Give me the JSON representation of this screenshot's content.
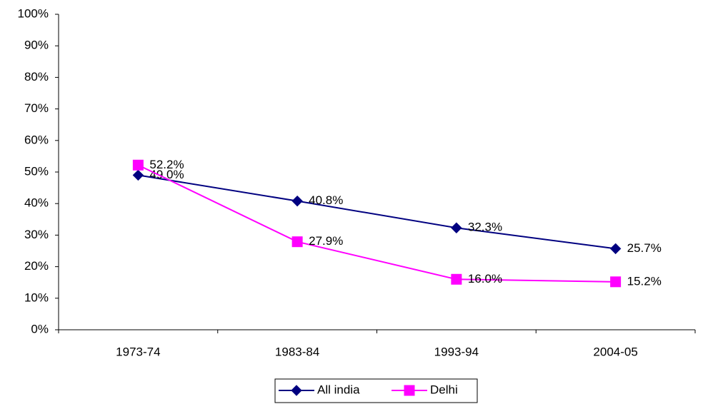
{
  "chart_data": {
    "type": "line",
    "categories": [
      "1973-74",
      "1983-84",
      "1993-94",
      "2004-05"
    ],
    "series": [
      {
        "name": "All india",
        "color": "#000080",
        "marker": "diamond",
        "values": [
          49.0,
          40.8,
          32.3,
          25.7
        ],
        "value_labels": [
          "49.0%",
          "40.8%",
          "32.3%",
          "25.7%"
        ]
      },
      {
        "name": "Delhi",
        "color": "#ff00ff",
        "marker": "square",
        "values": [
          52.2,
          27.9,
          16.0,
          15.2
        ],
        "value_labels": [
          "52.2%",
          "27.9%",
          "16.0%",
          "15.2%"
        ]
      }
    ],
    "ylim": [
      0,
      100
    ],
    "yticks": [
      {
        "value": 0,
        "label": "0%"
      },
      {
        "value": 10,
        "label": "10%"
      },
      {
        "value": 20,
        "label": "20%"
      },
      {
        "value": 30,
        "label": "30%"
      },
      {
        "value": 40,
        "label": "40%"
      },
      {
        "value": 50,
        "label": "50%"
      },
      {
        "value": 60,
        "label": "60%"
      },
      {
        "value": 70,
        "label": "70%"
      },
      {
        "value": 80,
        "label": "80%"
      },
      {
        "value": 90,
        "label": "90%"
      },
      {
        "value": 100,
        "label": "100%"
      }
    ],
    "legend": "bottom"
  }
}
